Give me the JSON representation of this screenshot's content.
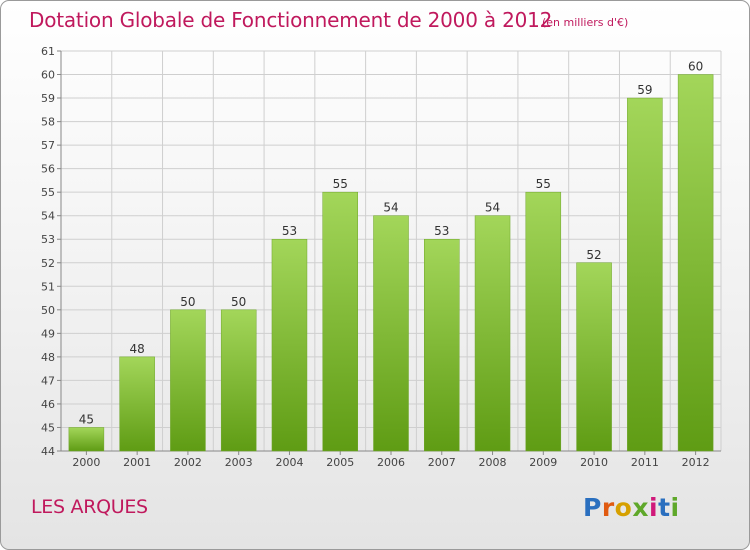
{
  "header": {
    "title": "Dotation Globale de Fonctionnement de 2000 à 2012",
    "subtitle": "(en milliers d'€)"
  },
  "footer": {
    "place": "LES ARQUES",
    "logo_text": "Proxiti",
    "logo_colors": [
      "#2a6fbf",
      "#e05a10",
      "#d6a000",
      "#5fa82a",
      "#d0197a",
      "#2a6fbf",
      "#5fa82a"
    ]
  },
  "colors": {
    "accent": "#c0195d",
    "bar_light": "#a3d65a",
    "bar_dark": "#5f9c14",
    "grid": "#cfcfcf"
  },
  "chart_data": {
    "type": "bar",
    "title": "Dotation Globale de Fonctionnement de 2000 à 2012",
    "subtitle": "(en milliers d'€)",
    "categories": [
      "2000",
      "2001",
      "2002",
      "2003",
      "2004",
      "2005",
      "2006",
      "2007",
      "2008",
      "2009",
      "2010",
      "2011",
      "2012"
    ],
    "values": [
      45,
      48,
      50,
      50,
      53,
      55,
      54,
      53,
      54,
      55,
      52,
      59,
      60
    ],
    "ylim": [
      44,
      61
    ],
    "yticks": [
      44,
      45,
      46,
      47,
      48,
      49,
      50,
      51,
      52,
      53,
      54,
      55,
      56,
      57,
      58,
      59,
      60,
      61
    ],
    "grid": true,
    "xlabel": "",
    "ylabel": ""
  }
}
